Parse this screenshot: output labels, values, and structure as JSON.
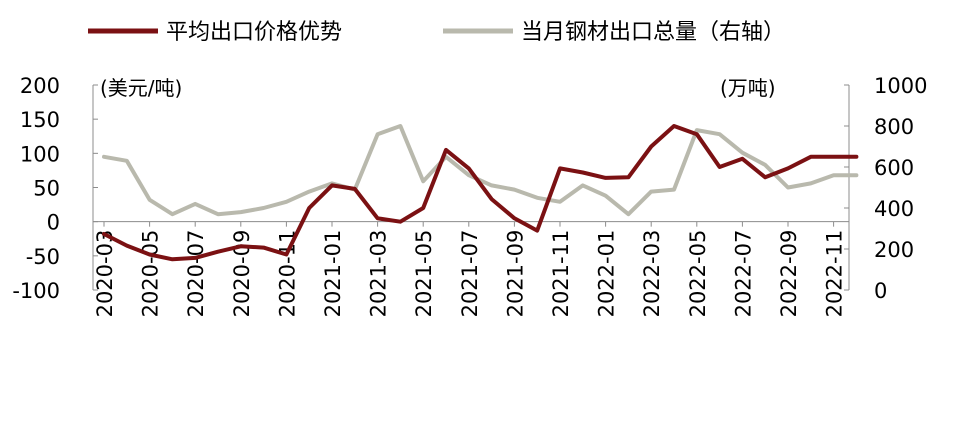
{
  "chart_data": {
    "type": "line",
    "legend": {
      "placement": "top",
      "entries": [
        {
          "label": "平均出口价格优势",
          "color": "#7B1113"
        },
        {
          "label": "当月钢材出口总量（右轴）",
          "color": "#B9B9AD"
        }
      ]
    },
    "left_axis": {
      "unit": "(美元/吨)",
      "ylim": [
        -100,
        200
      ],
      "ticks": [
        "200",
        "150",
        "100",
        "50",
        "0",
        "-50",
        "-100"
      ],
      "tick_values": [
        200,
        150,
        100,
        50,
        0,
        -50,
        -100
      ]
    },
    "right_axis": {
      "unit": "(万吨)",
      "ylim": [
        0,
        1000
      ],
      "ticks": [
        "1000",
        "800",
        "600",
        "400",
        "200",
        "0"
      ],
      "tick_values": [
        1000,
        800,
        600,
        400,
        200,
        0
      ]
    },
    "x": [
      "2020-03",
      "2020-04",
      "2020-05",
      "2020-06",
      "2020-07",
      "2020-08",
      "2020-09",
      "2020-10",
      "2020-11",
      "2020-12",
      "2021-01",
      "2021-02",
      "2021-03",
      "2021-04",
      "2021-05",
      "2021-06",
      "2021-07",
      "2021-08",
      "2021-09",
      "2021-10",
      "2021-11",
      "2021-12",
      "2022-01",
      "2022-02",
      "2022-03",
      "2022-04",
      "2022-05",
      "2022-06",
      "2022-07",
      "2022-08",
      "2022-09",
      "2022-10",
      "2022-11",
      "2022-12"
    ],
    "x_tick_labels": [
      "2020-03",
      "2020-05",
      "2020-07",
      "2020-09",
      "2020-11",
      "2021-01",
      "2021-03",
      "2021-05",
      "2021-07",
      "2021-09",
      "2021-11",
      "2022-01",
      "2022-03",
      "2022-05",
      "2022-07",
      "2022-09",
      "2022-11"
    ],
    "series": [
      {
        "name": "平均出口价格优势",
        "axis": "left",
        "color": "#7B1113",
        "values": [
          -18,
          -35,
          -48,
          -55,
          -53,
          -44,
          -36,
          -38,
          -48,
          20,
          53,
          48,
          5,
          0,
          20,
          105,
          78,
          33,
          5,
          -13,
          78,
          72,
          64,
          65,
          110,
          140,
          128,
          80,
          92,
          65,
          78,
          95,
          95,
          95
        ]
      },
      {
        "name": "当月钢材出口总量（右轴）",
        "axis": "right",
        "color": "#B9B9AD",
        "values": [
          650,
          630,
          440,
          370,
          420,
          370,
          380,
          400,
          430,
          480,
          520,
          490,
          760,
          800,
          530,
          650,
          560,
          510,
          490,
          450,
          430,
          510,
          460,
          370,
          480,
          490,
          780,
          760,
          670,
          610,
          500,
          520,
          560,
          560
        ]
      }
    ]
  }
}
